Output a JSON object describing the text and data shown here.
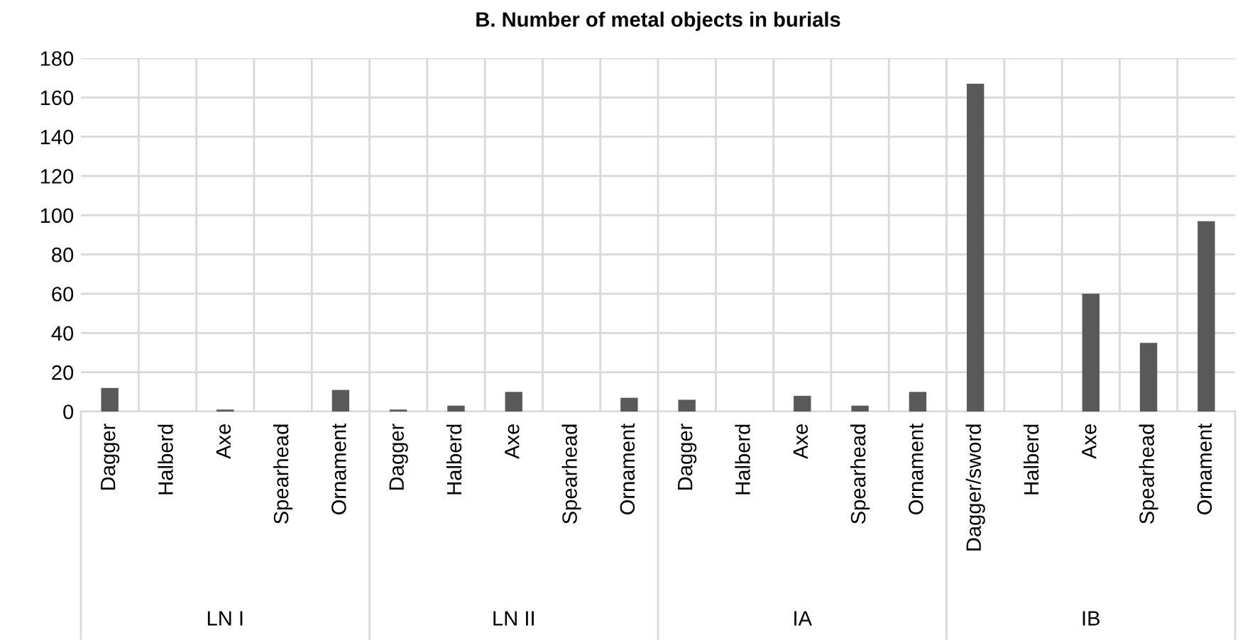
{
  "chart_data": {
    "type": "bar",
    "title": "B. Number of metal objects in burials",
    "categories": [
      "Dagger",
      "Halberd",
      "Axe",
      "Spearhead",
      "Ornament",
      "Dagger",
      "Halberd",
      "Axe",
      "Spearhead",
      "Ornament",
      "Dagger",
      "Halberd",
      "Axe",
      "Spearhead",
      "Ornament",
      "Dagger/sword",
      "Halberd",
      "Axe",
      "Spearhead",
      "Ornament"
    ],
    "values": [
      12,
      0,
      1,
      0,
      11,
      1,
      3,
      10,
      0,
      7,
      6,
      0,
      8,
      3,
      10,
      167,
      0,
      60,
      35,
      97
    ],
    "color": "#595959",
    "ylim": [
      0,
      180
    ],
    "yticks": [
      0,
      20,
      40,
      60,
      80,
      100,
      120,
      140,
      160,
      180
    ],
    "grid": true,
    "legend": false,
    "annotations": [
      "LN I",
      "LN II",
      "IA",
      "IB"
    ]
  }
}
